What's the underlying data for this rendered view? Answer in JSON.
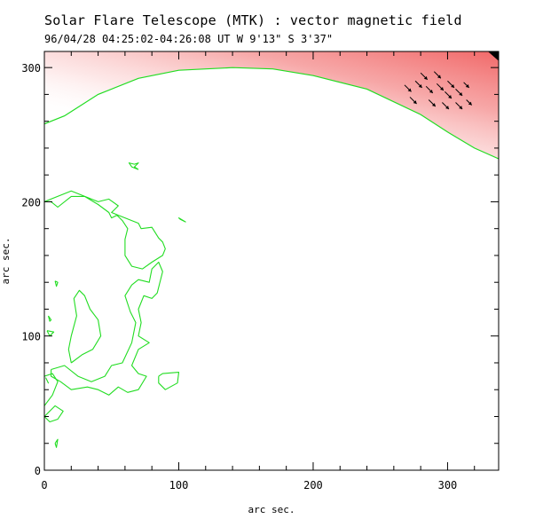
{
  "header": {
    "title": "Solar Flare Telescope (MTK) : vector magnetic field",
    "subtitle": "96/04/28  04:25:02-04:26:08 UT    W 9'13\"  S 3'37\""
  },
  "chart_data": {
    "type": "contour",
    "title": "Solar Flare Telescope (MTK) : vector magnetic field",
    "subtitle": "96/04/28  04:25:02-04:26:08 UT    W 9'13\"  S 3'37\"",
    "xlabel": "arc sec.",
    "ylabel": "arc sec.",
    "xlim": [
      0,
      338
    ],
    "ylim": [
      0,
      312
    ],
    "xticks": [
      0,
      100,
      200,
      300
    ],
    "yticks": [
      0,
      100,
      200,
      300
    ],
    "colors": {
      "contour": "#22dd22",
      "limb_fill": "#f06c6c",
      "vectors": "#000000",
      "axes": "#000000"
    },
    "limb_curve": [
      [
        0,
        258
      ],
      [
        15,
        264
      ],
      [
        40,
        280
      ],
      [
        70,
        292
      ],
      [
        100,
        298
      ],
      [
        140,
        300
      ],
      [
        170,
        299
      ],
      [
        200,
        294
      ],
      [
        240,
        284
      ],
      [
        280,
        265
      ],
      [
        300,
        252
      ],
      [
        320,
        240
      ],
      [
        338,
        232
      ]
    ],
    "contours": [
      [
        [
          70,
          224
        ],
        [
          65,
          226
        ],
        [
          63,
          229
        ],
        [
          67,
          228
        ],
        [
          70,
          229
        ],
        [
          67,
          226
        ],
        [
          70,
          224
        ]
      ],
      [
        [
          101,
          187
        ],
        [
          105,
          185
        ],
        [
          100,
          188
        ],
        [
          101,
          187
        ]
      ],
      [
        [
          8,
          141
        ],
        [
          9,
          137
        ],
        [
          10,
          140
        ],
        [
          8,
          141
        ]
      ],
      [
        [
          3,
          115
        ],
        [
          5,
          112
        ],
        [
          4,
          111
        ],
        [
          3,
          115
        ]
      ],
      [
        [
          2,
          104
        ],
        [
          4,
          100
        ],
        [
          7,
          103
        ],
        [
          2,
          104
        ]
      ],
      [
        [
          1,
          69
        ],
        [
          3,
          65
        ],
        [
          2,
          67
        ],
        [
          1,
          69
        ]
      ],
      [
        [
          8,
          20
        ],
        [
          10,
          23
        ],
        [
          9,
          17
        ],
        [
          8,
          20
        ]
      ],
      [
        [
          85,
          70
        ],
        [
          88,
          72
        ],
        [
          100,
          73
        ],
        [
          99,
          65
        ],
        [
          90,
          60
        ],
        [
          85,
          65
        ],
        [
          85,
          70
        ]
      ],
      [
        [
          0,
          200
        ],
        [
          20,
          208
        ],
        [
          40,
          200
        ],
        [
          48,
          202
        ],
        [
          55,
          197
        ],
        [
          50,
          192
        ],
        [
          55,
          190
        ],
        [
          60,
          188
        ],
        [
          70,
          184
        ],
        [
          72,
          180
        ],
        [
          80,
          181
        ],
        [
          85,
          173
        ],
        [
          88,
          170
        ],
        [
          90,
          165
        ],
        [
          88,
          160
        ],
        [
          80,
          155
        ],
        [
          73,
          150
        ],
        [
          65,
          152
        ],
        [
          60,
          160
        ],
        [
          60,
          172
        ],
        [
          62,
          180
        ],
        [
          58,
          186
        ],
        [
          54,
          190
        ],
        [
          50,
          188
        ],
        [
          48,
          192
        ],
        [
          40,
          198
        ],
        [
          30,
          204
        ],
        [
          20,
          204
        ],
        [
          10,
          196
        ],
        [
          5,
          200
        ],
        [
          0,
          200
        ]
      ],
      [
        [
          5,
          75
        ],
        [
          15,
          78
        ],
        [
          25,
          70
        ],
        [
          35,
          66
        ],
        [
          45,
          70
        ],
        [
          50,
          78
        ],
        [
          58,
          80
        ],
        [
          65,
          95
        ],
        [
          68,
          110
        ],
        [
          64,
          118
        ],
        [
          60,
          130
        ],
        [
          65,
          138
        ],
        [
          70,
          142
        ],
        [
          78,
          140
        ],
        [
          80,
          150
        ],
        [
          85,
          155
        ],
        [
          88,
          148
        ],
        [
          84,
          132
        ],
        [
          80,
          128
        ],
        [
          74,
          130
        ],
        [
          70,
          120
        ],
        [
          72,
          110
        ],
        [
          70,
          100
        ],
        [
          78,
          95
        ],
        [
          70,
          90
        ],
        [
          65,
          78
        ],
        [
          70,
          72
        ],
        [
          76,
          70
        ],
        [
          70,
          60
        ],
        [
          62,
          58
        ],
        [
          55,
          62
        ],
        [
          48,
          56
        ],
        [
          40,
          60
        ],
        [
          32,
          62
        ],
        [
          20,
          60
        ],
        [
          12,
          66
        ],
        [
          5,
          70
        ],
        [
          5,
          75
        ]
      ],
      [
        [
          20,
          80
        ],
        [
          28,
          86
        ],
        [
          36,
          90
        ],
        [
          42,
          100
        ],
        [
          40,
          112
        ],
        [
          34,
          120
        ],
        [
          30,
          130
        ],
        [
          26,
          134
        ],
        [
          22,
          128
        ],
        [
          24,
          115
        ],
        [
          20,
          100
        ],
        [
          18,
          90
        ],
        [
          20,
          80
        ]
      ],
      [
        [
          0,
          48
        ],
        [
          6,
          56
        ],
        [
          10,
          66
        ],
        [
          6,
          72
        ],
        [
          0,
          70
        ]
      ],
      [
        [
          0,
          40
        ],
        [
          8,
          48
        ],
        [
          14,
          44
        ],
        [
          10,
          38
        ],
        [
          4,
          36
        ],
        [
          0,
          40
        ]
      ]
    ],
    "vectors": [
      [
        268,
        287,
        5,
        -5
      ],
      [
        276,
        290,
        5,
        -5
      ],
      [
        284,
        286,
        5,
        -5
      ],
      [
        292,
        288,
        5,
        -5
      ],
      [
        300,
        290,
        5,
        -5
      ],
      [
        280,
        296,
        5,
        -5
      ],
      [
        290,
        297,
        5,
        -5
      ],
      [
        298,
        282,
        5,
        -5
      ],
      [
        306,
        284,
        5,
        -5
      ],
      [
        312,
        289,
        4,
        -4
      ],
      [
        272,
        278,
        5,
        -5
      ],
      [
        286,
        276,
        5,
        -5
      ],
      [
        296,
        274,
        5,
        -5
      ],
      [
        306,
        274,
        5,
        -5
      ],
      [
        314,
        276,
        4,
        -4
      ]
    ]
  }
}
